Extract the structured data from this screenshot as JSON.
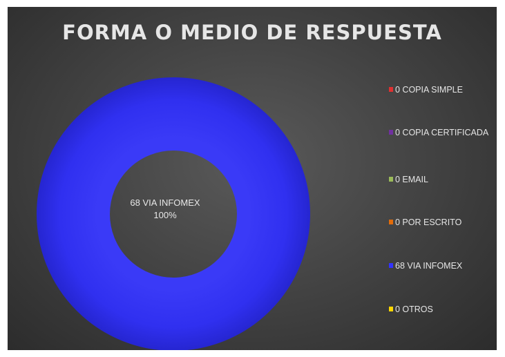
{
  "chart_data": {
    "type": "pie",
    "donut": true,
    "title": "FORMA O MEDIO DE RESPUESTA",
    "categories": [
      "COPIA SIMPLE",
      "COPIA CERTIFICADA",
      "EMAIL",
      "POR ESCRITO",
      "VIA INFOMEX",
      "OTROS"
    ],
    "values": [
      0,
      0,
      0,
      0,
      68,
      0
    ],
    "colors": [
      "#e03030",
      "#7030a0",
      "#9bbb59",
      "#e36c0a",
      "#3333ff",
      "#ffd700"
    ],
    "legend_labels": [
      "0 COPIA SIMPLE",
      "0 COPIA CERTIFICADA",
      "0 EMAIL",
      "0 POR ESCRITO",
      "68 VIA INFOMEX",
      "0 OTROS"
    ],
    "legend_position": "right",
    "data_label": {
      "line1": "68 VIA INFOMEX",
      "line2": "100%"
    },
    "grid": false
  }
}
